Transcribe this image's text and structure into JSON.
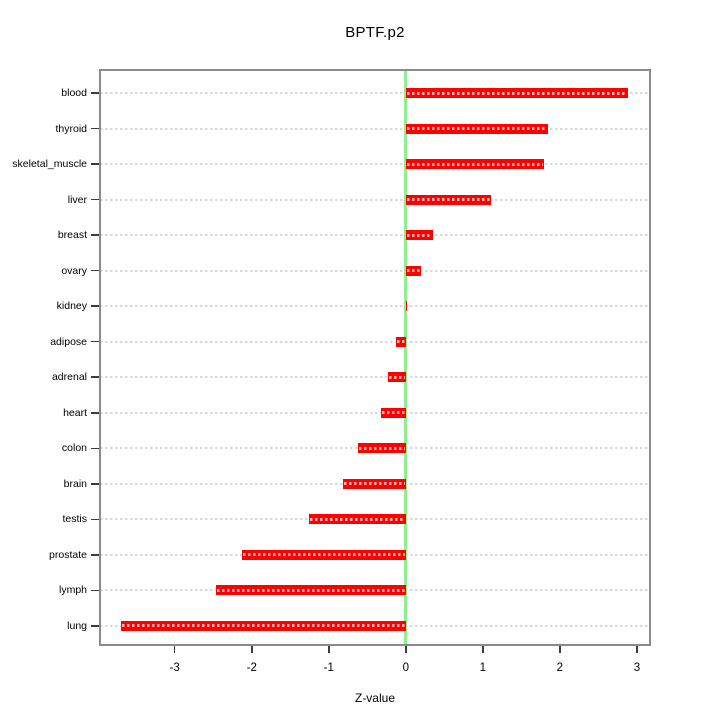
{
  "chart_data": {
    "type": "bar",
    "orientation": "horizontal",
    "title": "BPTF.p2",
    "xlabel": "Z-value",
    "ylabel": "",
    "categories": [
      "blood",
      "thyroid",
      "skeletal_muscle",
      "liver",
      "breast",
      "ovary",
      "kidney",
      "adipose",
      "adrenal",
      "heart",
      "colon",
      "brain",
      "testis",
      "prostate",
      "lymph",
      "lung"
    ],
    "values": [
      2.88,
      1.85,
      1.8,
      1.1,
      0.35,
      0.2,
      0.02,
      -0.13,
      -0.23,
      -0.32,
      -0.62,
      -0.82,
      -1.26,
      -2.13,
      -2.47,
      -3.7
    ],
    "x_ticks": [
      -3,
      -2,
      -1,
      0,
      1,
      2,
      3
    ],
    "xlim": [
      -3.97,
      3.17
    ],
    "grid": true,
    "legend": null,
    "colors": {
      "bar": "#ff0000",
      "zero_line": "#90ee90",
      "grid": "#d9d9d9",
      "box": "#8a8a8a",
      "text": "#000000"
    }
  }
}
